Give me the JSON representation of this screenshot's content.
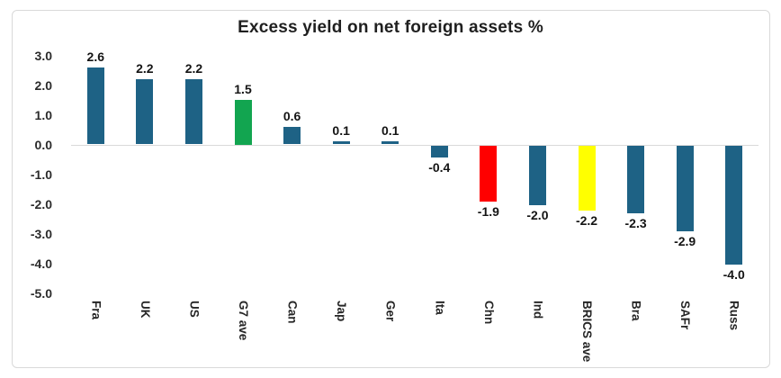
{
  "chart_data": {
    "type": "bar",
    "title": "Excess yield on net foreign assets %",
    "categories": [
      "Fra",
      "UK",
      "US",
      "G7 ave",
      "Can",
      "Jap",
      "Ger",
      "Ita",
      "Chn",
      "Ind",
      "BRICS ave",
      "Bra",
      "SAFr",
      "Russ"
    ],
    "values": [
      2.6,
      2.2,
      2.2,
      1.5,
      0.6,
      0.1,
      0.1,
      -0.4,
      -1.9,
      -2.0,
      -2.2,
      -2.3,
      -2.9,
      -4.0
    ],
    "bar_colors": [
      "#1E6285",
      "#1E6285",
      "#1E6285",
      "#12A550",
      "#1E6285",
      "#1E6285",
      "#1E6285",
      "#1E6285",
      "#FF0000",
      "#1E6285",
      "#FFFF00",
      "#1E6285",
      "#1E6285",
      "#1E6285"
    ],
    "default_bar_color": "#1E6285",
    "highlight_colors": {
      "G7 ave": "#12A550",
      "Chn": "#FF0000",
      "BRICS ave": "#FFFF00"
    },
    "xlabel": "",
    "ylabel": "",
    "ylim": [
      -5.0,
      3.0
    ],
    "y_tick_labels": [
      "3.0",
      "2.0",
      "1.0",
      "0.0",
      "-1.0",
      "-2.0",
      "-3.0",
      "-4.0",
      "-5.0"
    ],
    "value_label_decimals": 1,
    "grid": false,
    "legend": "none",
    "axis_line_color": "#D9D9D9",
    "frame_border_color": "#D9D9D9"
  }
}
